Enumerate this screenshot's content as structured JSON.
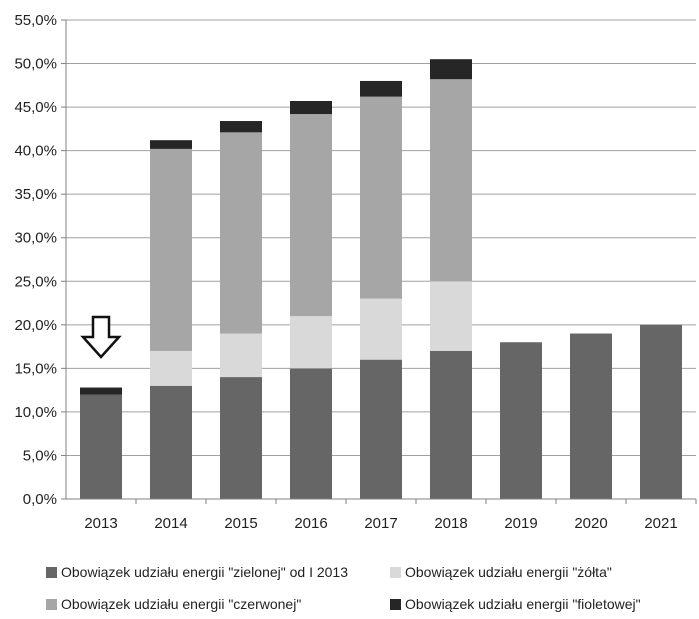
{
  "chart_data": {
    "type": "bar",
    "stacked": true,
    "categories": [
      "2013",
      "2014",
      "2015",
      "2016",
      "2017",
      "2018",
      "2019",
      "2020",
      "2021"
    ],
    "series": [
      {
        "name": "Obowiązek  udziału energii \"zielonej\" od I 2013",
        "color": "#666666",
        "values": [
          12.0,
          13.0,
          14.0,
          15.0,
          16.0,
          17.0,
          18.0,
          19.0,
          20.0
        ]
      },
      {
        "name": "Obowiązek  udziału energii \"żółta\"",
        "color": "#d9d9d9",
        "values": [
          0,
          4.0,
          5.0,
          6.0,
          7.0,
          8.0,
          0,
          0,
          0
        ]
      },
      {
        "name": "Obowiązek  udziału energii \"czerwonej\"",
        "color": "#a6a6a6",
        "values": [
          0,
          23.2,
          23.1,
          23.2,
          23.2,
          23.2,
          0,
          0,
          0
        ]
      },
      {
        "name": "Obowiązek  udziału energii \"fioletowej\"",
        "color": "#262626",
        "values": [
          0.8,
          1.0,
          1.3,
          1.5,
          1.8,
          2.3,
          0,
          0,
          0
        ]
      }
    ],
    "ylim": [
      0,
      55
    ],
    "yticks": [
      "0,0%",
      "5,0%",
      "10,0%",
      "15,0%",
      "20,0%",
      "25,0%",
      "30,0%",
      "35,0%",
      "40,0%",
      "45,0%",
      "50,0%",
      "55,0%"
    ],
    "grid": true,
    "legend_position": "bottom",
    "annotation": {
      "type": "arrow-down",
      "category": "2013"
    }
  }
}
